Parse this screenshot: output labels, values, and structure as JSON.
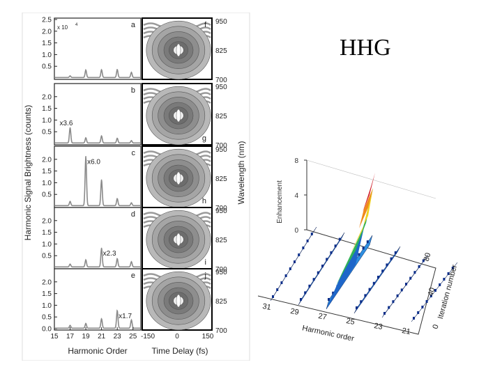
{
  "title": "HHG",
  "chart_data": [
    {
      "type": "line",
      "description_id": "harmonic-spectra",
      "ylabel": "Harmonic Signal Brightness (counts)",
      "xlabel": "Harmonic Order",
      "xlim": [
        15,
        26
      ],
      "ylim": [
        0,
        2.5
      ],
      "x_ticks": [
        "15",
        "17",
        "19",
        "21",
        "23",
        "25"
      ],
      "y_ticks_top": [
        "0.5",
        "1.0",
        "1.5",
        "2.0",
        "2.5"
      ],
      "y_ticks": [
        "0.5",
        "1.0",
        "1.5",
        "2.0"
      ],
      "y_ticks_bottom": [
        "0.0",
        "0.5",
        "1.0",
        "1.5",
        "2.0"
      ],
      "scale_note": "x 10",
      "scale_exp": "4",
      "panels": [
        {
          "label": "a",
          "multiplier": "",
          "peaks": [
            [
              17,
              0.07
            ],
            [
              19,
              0.32
            ],
            [
              21,
              0.33
            ],
            [
              23,
              0.34
            ],
            [
              24.8,
              0.22
            ]
          ]
        },
        {
          "label": "b",
          "multiplier": "x3.6",
          "peaks": [
            [
              17,
              0.65
            ],
            [
              19,
              0.22
            ],
            [
              21,
              0.3
            ],
            [
              23,
              0.2
            ],
            [
              24.8,
              0.1
            ]
          ]
        },
        {
          "label": "c",
          "multiplier": "x6.0",
          "peaks": [
            [
              17,
              0.18
            ],
            [
              19,
              2.1
            ],
            [
              21,
              1.1
            ],
            [
              23,
              0.3
            ],
            [
              24.8,
              0.12
            ]
          ]
        },
        {
          "label": "d",
          "multiplier": "x2.3",
          "peaks": [
            [
              17,
              0.12
            ],
            [
              19,
              0.3
            ],
            [
              21,
              0.8
            ],
            [
              23,
              0.35
            ],
            [
              24.8,
              0.22
            ]
          ]
        },
        {
          "label": "e",
          "multiplier": "x1.7",
          "peaks": [
            [
              17,
              0.12
            ],
            [
              19,
              0.2
            ],
            [
              21,
              0.4
            ],
            [
              23,
              0.75
            ],
            [
              24.8,
              0.35
            ]
          ]
        }
      ]
    },
    {
      "type": "heatmap",
      "description_id": "time-delay-contours",
      "xlabel": "Time Delay (fs)",
      "ylabel": "Wavelength (nm)",
      "x_ticks": [
        "-150",
        "0",
        "150"
      ],
      "y_ticks": [
        "950",
        "825",
        "700"
      ],
      "panels": [
        "f",
        "g",
        "h",
        "i",
        "j"
      ]
    },
    {
      "type": "area",
      "description_id": "enhancement-3d",
      "zlabel": "Enhancement",
      "xlabel": "Harmonic order",
      "ylabel": "Iteration number",
      "z_ticks": [
        "0",
        "4",
        "8"
      ],
      "x_ticks": [
        "31",
        "29",
        "27",
        "25",
        "23",
        "21"
      ],
      "y_ticks": [
        "0",
        "40",
        "80"
      ],
      "peak_enhancement": 8
    }
  ]
}
